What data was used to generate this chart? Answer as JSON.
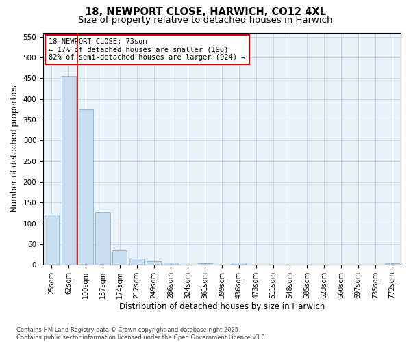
{
  "title1": "18, NEWPORT CLOSE, HARWICH, CO12 4XL",
  "title2": "Size of property relative to detached houses in Harwich",
  "xlabel": "Distribution of detached houses by size in Harwich",
  "ylabel": "Number of detached properties",
  "categories": [
    "25sqm",
    "62sqm",
    "100sqm",
    "137sqm",
    "174sqm",
    "212sqm",
    "249sqm",
    "286sqm",
    "324sqm",
    "361sqm",
    "399sqm",
    "436sqm",
    "473sqm",
    "511sqm",
    "548sqm",
    "585sqm",
    "623sqm",
    "660sqm",
    "697sqm",
    "735sqm",
    "772sqm"
  ],
  "values": [
    120,
    455,
    375,
    128,
    35,
    15,
    8,
    5,
    0,
    3,
    0,
    5,
    0,
    0,
    0,
    0,
    0,
    0,
    0,
    0,
    3
  ],
  "bar_color": "#c8ddf0",
  "bar_edge_color": "#8ab4d8",
  "red_line_x": 1.5,
  "annotation_text": "18 NEWPORT CLOSE: 73sqm\n← 17% of detached houses are smaller (196)\n82% of semi-detached houses are larger (924) →",
  "grid_color": "#c0d4e8",
  "plot_bg": "#e8f0f8",
  "fig_bg": "#ffffff",
  "ylim": [
    0,
    560
  ],
  "yticks": [
    0,
    50,
    100,
    150,
    200,
    250,
    300,
    350,
    400,
    450,
    500,
    550
  ],
  "footnote": "Contains HM Land Registry data © Crown copyright and database right 2025.\nContains public sector information licensed under the Open Government Licence v3.0."
}
